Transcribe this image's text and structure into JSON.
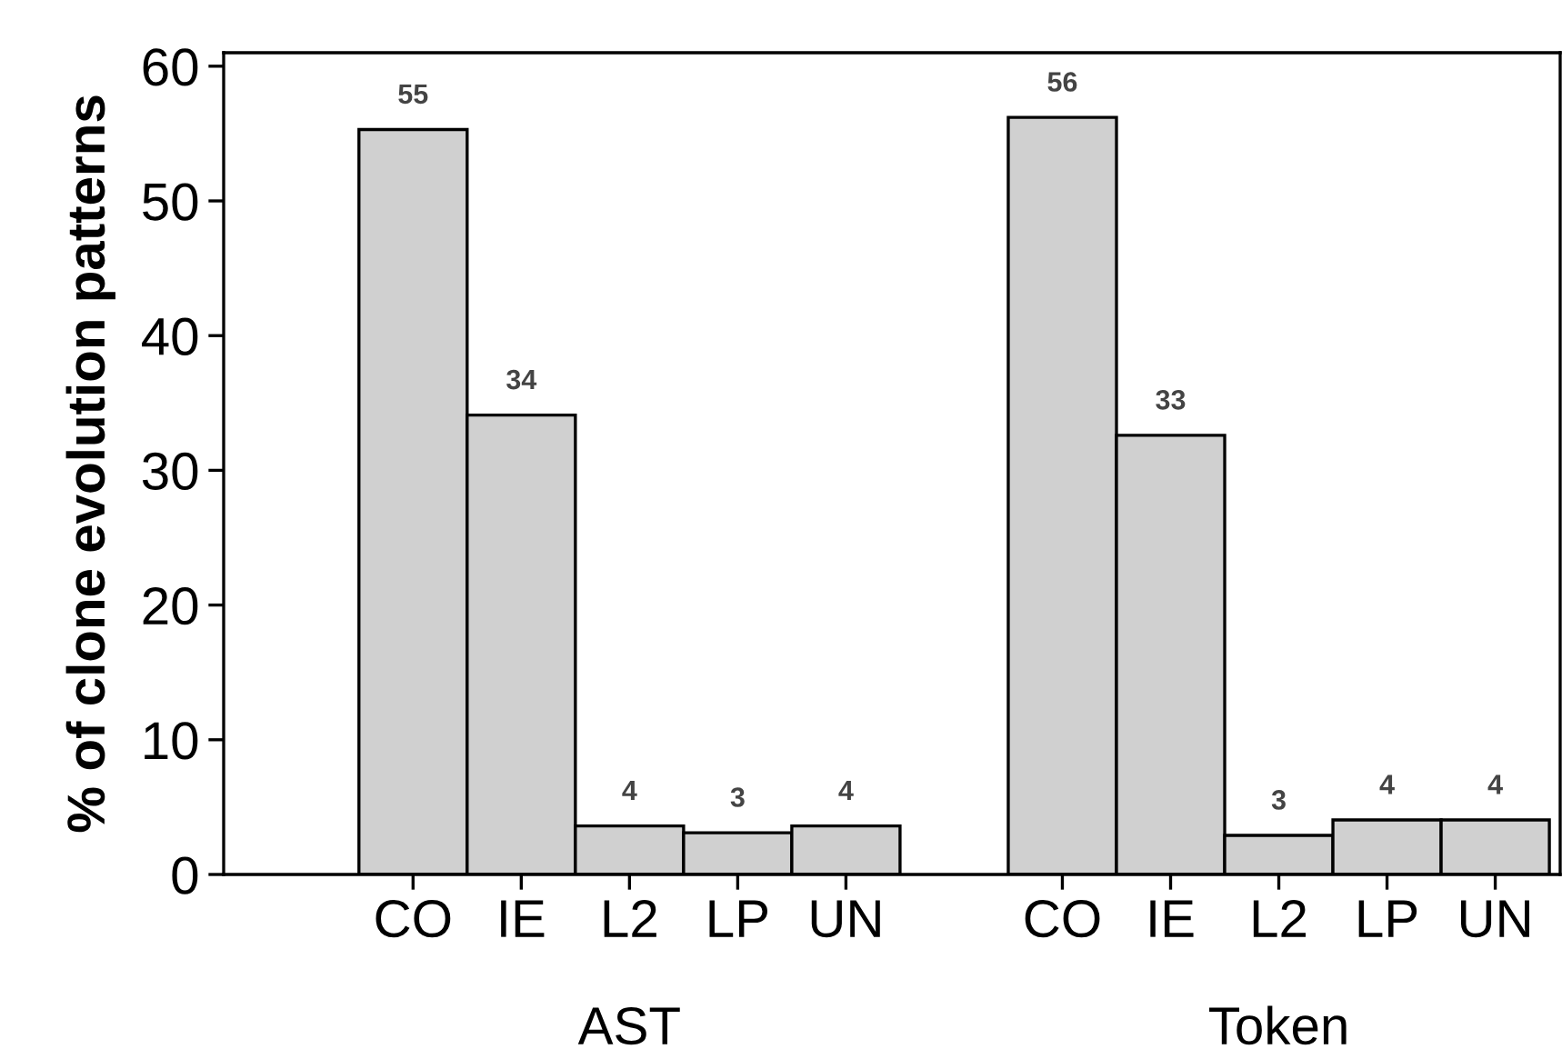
{
  "chart_data": {
    "type": "bar",
    "ylabel": "% of clone evolution patterns",
    "categories": [
      "CO",
      "IE",
      "L2",
      "LP",
      "UN",
      null,
      "CO",
      "IE",
      "L2",
      "LP",
      "UN"
    ],
    "values": [
      55.3,
      34.1,
      3.6,
      3.1,
      3.6,
      null,
      56.2,
      32.6,
      2.9,
      4.05,
      4.05
    ],
    "value_labels": [
      "55",
      "34",
      "4",
      "3",
      "4",
      null,
      "56",
      "33",
      "3",
      "4",
      "4"
    ],
    "color": "#d0d0d0",
    "ylim": [
      0,
      61
    ],
    "yticks": [
      0,
      10,
      20,
      30,
      40,
      50,
      60
    ],
    "annotations": [
      "AST",
      "Token"
    ],
    "grid": false,
    "legend": false
  }
}
